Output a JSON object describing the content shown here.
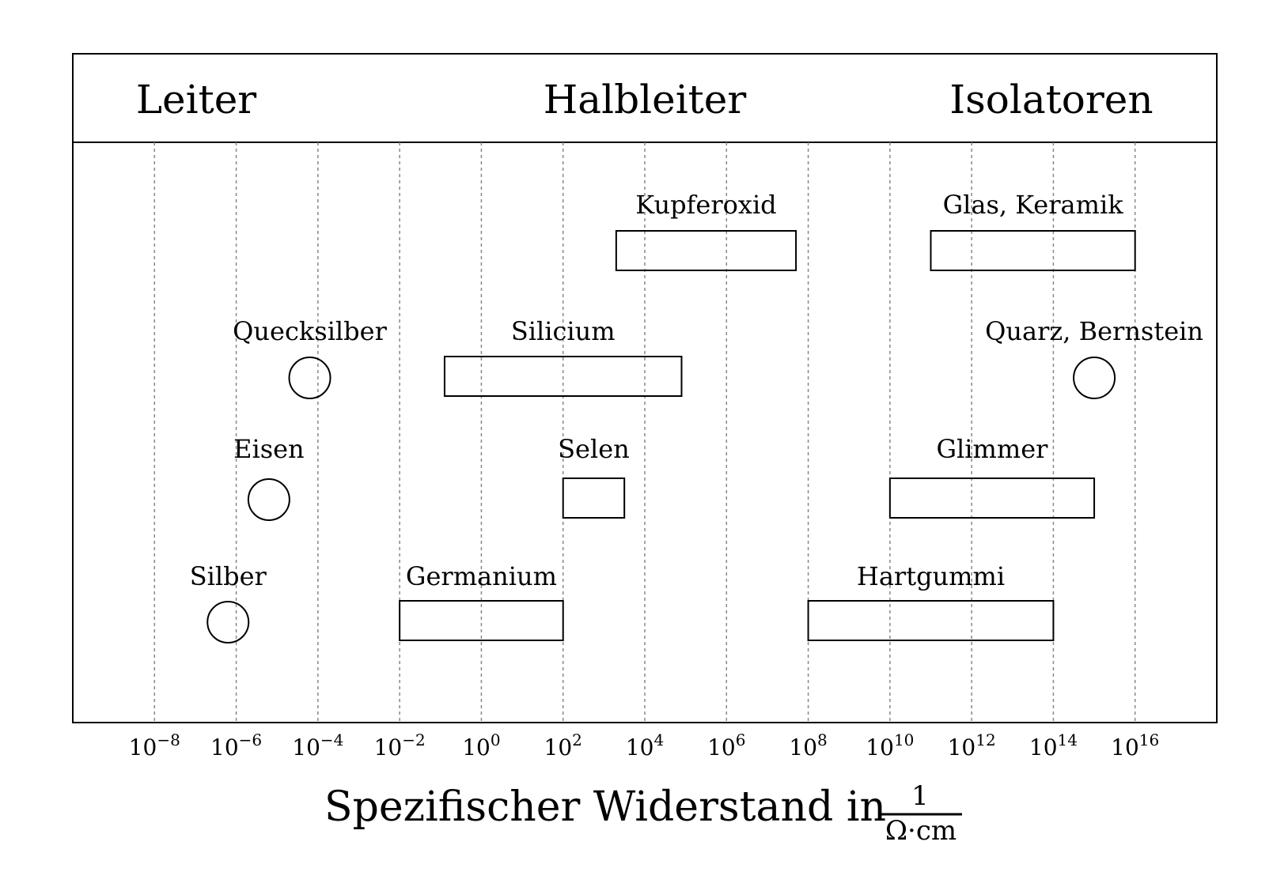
{
  "chart_data": {
    "type": "range",
    "categories": [
      "Leiter",
      "Halbleiter",
      "Isolatoren"
    ],
    "x_scale": "log10",
    "xlim_exponent": [
      -10,
      18
    ],
    "x_ticks": [
      {
        "base": "10",
        "exp": "−8",
        "value_exp": -8
      },
      {
        "base": "10",
        "exp": "−6",
        "value_exp": -6
      },
      {
        "base": "10",
        "exp": "−4",
        "value_exp": -4
      },
      {
        "base": "10",
        "exp": "−2",
        "value_exp": -2
      },
      {
        "base": "10",
        "exp": "0",
        "value_exp": 0
      },
      {
        "base": "10",
        "exp": "2",
        "value_exp": 2
      },
      {
        "base": "10",
        "exp": "4",
        "value_exp": 4
      },
      {
        "base": "10",
        "exp": "6",
        "value_exp": 6
      },
      {
        "base": "10",
        "exp": "8",
        "value_exp": 8
      },
      {
        "base": "10",
        "exp": "10",
        "value_exp": 10
      },
      {
        "base": "10",
        "exp": "12",
        "value_exp": 12
      },
      {
        "base": "10",
        "exp": "14",
        "value_exp": 14
      },
      {
        "base": "10",
        "exp": "16",
        "value_exp": 16
      }
    ],
    "grid": "vertical dotted",
    "xlabel": {
      "text": "Spezifischer Widerstand in",
      "numerator": "1",
      "denominator": "Ω·cm"
    },
    "materials": [
      {
        "name": "Kupferoxid",
        "shape": "range",
        "row": 1,
        "x_from_exp": 3.3,
        "x_to_exp": 7.7
      },
      {
        "name": "Glas, Keramik",
        "shape": "range",
        "row": 1,
        "x_from_exp": 11,
        "x_to_exp": 16
      },
      {
        "name": "Quecksilber",
        "shape": "point",
        "row": 2,
        "x_exp": -4.2
      },
      {
        "name": "Silicium",
        "shape": "range",
        "row": 2,
        "x_from_exp": -0.9,
        "x_to_exp": 4.9
      },
      {
        "name": "Quarz, Bernstein",
        "shape": "point",
        "row": 2,
        "x_exp": 15
      },
      {
        "name": "Eisen",
        "shape": "point",
        "row": 3,
        "x_exp": -5.2
      },
      {
        "name": "Selen",
        "shape": "range",
        "row": 3,
        "x_from_exp": 2,
        "x_to_exp": 3.5
      },
      {
        "name": "Glimmer",
        "shape": "range",
        "row": 3,
        "x_from_exp": 10,
        "x_to_exp": 15
      },
      {
        "name": "Silber",
        "shape": "point",
        "row": 4,
        "x_exp": -6.2
      },
      {
        "name": "Germanium",
        "shape": "range",
        "row": 4,
        "x_from_exp": -2,
        "x_to_exp": 2
      },
      {
        "name": "Hartgummi",
        "shape": "range",
        "row": 4,
        "x_from_exp": 8,
        "x_to_exp": 14
      }
    ]
  }
}
